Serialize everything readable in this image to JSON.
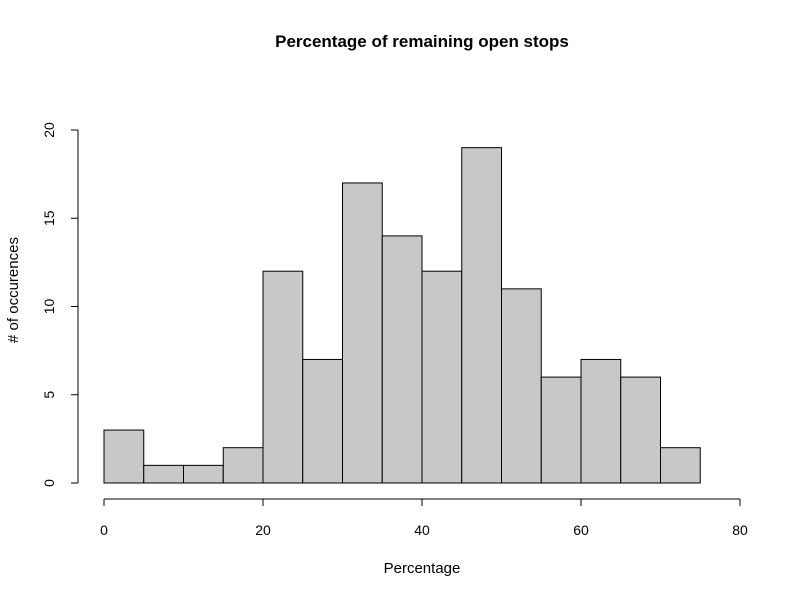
{
  "chart_data": {
    "type": "bar",
    "title": "Percentage of remaining open stops",
    "xlabel": "Percentage",
    "ylabel": "# of occurences",
    "bin_edges": [
      0,
      5,
      10,
      15,
      20,
      25,
      30,
      35,
      40,
      45,
      50,
      55,
      60,
      65,
      70,
      75
    ],
    "values": [
      3,
      1,
      1,
      2,
      12,
      7,
      17,
      14,
      12,
      19,
      11,
      6,
      7,
      6,
      2
    ],
    "xlim": [
      0,
      80
    ],
    "ylim": [
      0,
      20
    ],
    "x_ticks": [
      0,
      20,
      40,
      60,
      80
    ],
    "y_ticks": [
      0,
      5,
      10,
      15,
      20
    ],
    "bar_color": "#c8c8c8",
    "grid": false,
    "legend": "none"
  }
}
